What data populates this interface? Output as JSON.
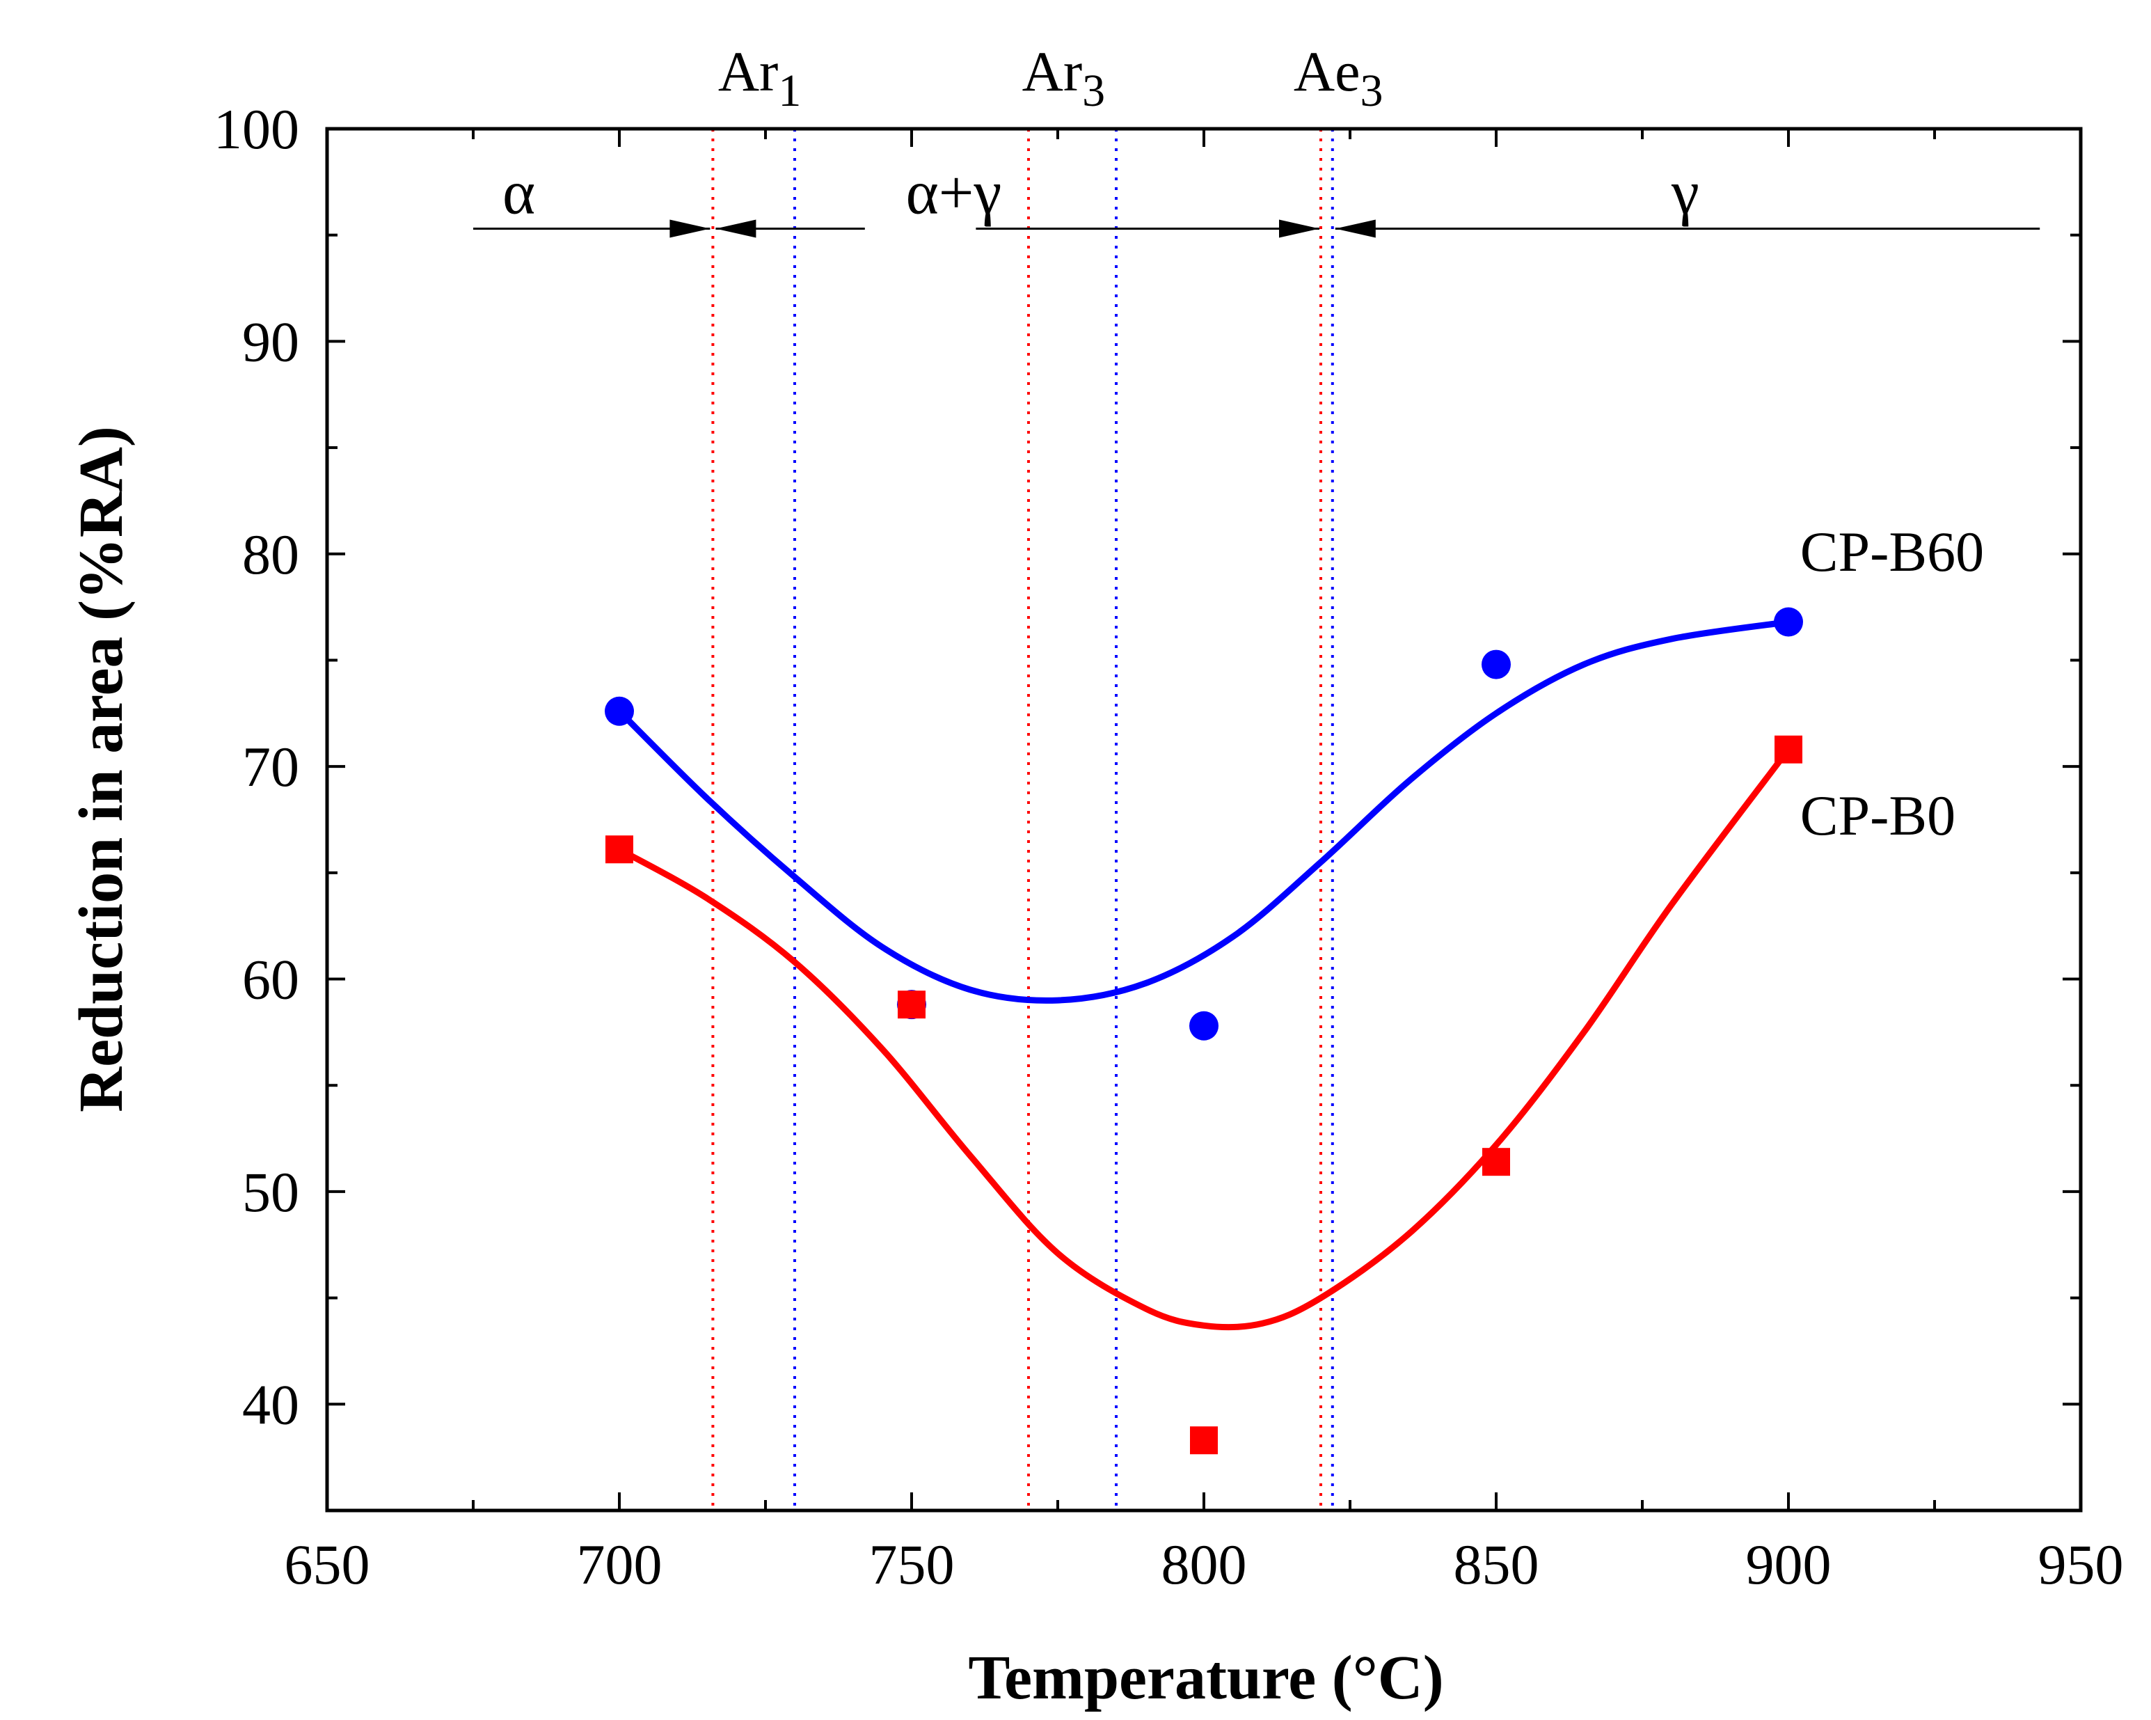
{
  "chart_data": {
    "type": "line",
    "xlabel": "Temperature (°C)",
    "ylabel": "Reduction in area (%RA)",
    "xlim": [
      650,
      950
    ],
    "ylim": [
      35,
      100
    ],
    "xticks": [
      650,
      700,
      750,
      800,
      850,
      900,
      950
    ],
    "yticks": [
      40,
      50,
      60,
      70,
      80,
      90,
      100
    ],
    "series": [
      {
        "name": "CP-B60",
        "color": "#0000ff",
        "marker": "circle",
        "points": {
          "x": [
            700,
            750,
            800,
            850,
            900
          ],
          "y": [
            72.6,
            58.8,
            57.8,
            74.8,
            76.8
          ]
        },
        "fit": {
          "x": [
            700,
            715,
            730,
            745,
            760,
            775,
            790,
            805,
            820,
            835,
            850,
            865,
            880,
            900
          ],
          "y": [
            72.6,
            68.5,
            64.8,
            61.5,
            59.5,
            59.0,
            59.8,
            62.0,
            65.5,
            69.3,
            72.5,
            74.8,
            76.0,
            76.8
          ]
        }
      },
      {
        "name": "CP-B0",
        "color": "#ff0000",
        "marker": "square",
        "points": {
          "x": [
            700,
            750,
            800,
            850,
            900
          ],
          "y": [
            66.1,
            58.8,
            38.3,
            51.4,
            70.8
          ]
        },
        "fit": {
          "x": [
            700,
            715,
            730,
            745,
            760,
            775,
            790,
            800,
            810,
            820,
            835,
            850,
            865,
            880,
            900
          ],
          "y": [
            66.1,
            63.8,
            60.8,
            56.7,
            51.7,
            47.1,
            44.5,
            43.7,
            43.8,
            45.0,
            48.0,
            52.2,
            57.5,
            63.5,
            70.8
          ]
        }
      }
    ],
    "series_labels": [
      {
        "text": "CP-B60",
        "x": 902,
        "y": 79.2
      },
      {
        "text": "CP-B0",
        "x": 902,
        "y": 66.8
      }
    ],
    "reference_lines": [
      {
        "series": "CP-B0",
        "color": "#ff0000",
        "x": [
          716,
          770,
          820
        ]
      },
      {
        "series": "CP-B60",
        "color": "#0000ff",
        "x": [
          730,
          785,
          822
        ]
      }
    ],
    "top_markers": [
      {
        "base": "Ar",
        "sub": "1",
        "x": 724
      },
      {
        "base": "Ar",
        "sub": "3",
        "x": 776
      },
      {
        "base": "Ae",
        "sub": "3",
        "x": 823
      }
    ],
    "phase_arrows": {
      "y": 95.3,
      "ranges": [
        {
          "label": "α",
          "from": 675,
          "to": 716,
          "label_x": 680
        },
        {
          "label": "α+γ",
          "from": 716,
          "to": 820,
          "label_x": 749
        },
        {
          "label": "γ",
          "from": 822,
          "to": 943,
          "label_x": 880
        }
      ]
    }
  }
}
